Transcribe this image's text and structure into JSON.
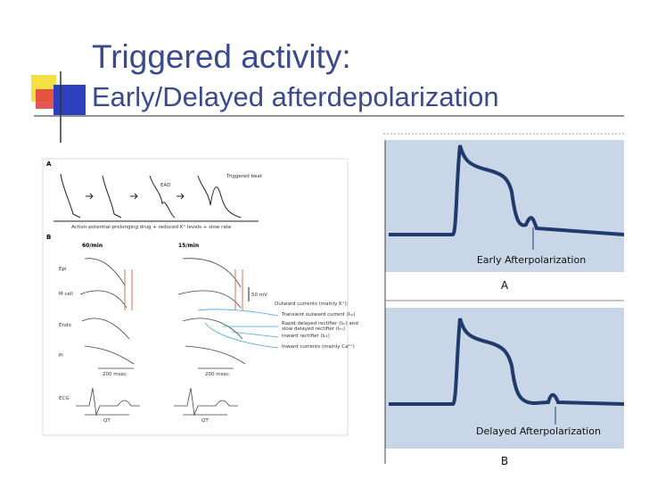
{
  "header": {
    "title": "Triggered activity:",
    "subtitle": "Early/Delayed afterdepolarization"
  },
  "left_figure": {
    "panel_a": {
      "label": "A",
      "ead": "EAD",
      "triggered": "Triggered beat",
      "caption": "Action-potential-prolonging drug + reduced K⁺ levels + slow rate"
    },
    "panel_b": {
      "label": "B",
      "rate_1": "60/min",
      "rate_2": "15/min",
      "rows": [
        "Epi",
        "M cell",
        "Endo",
        "Pi",
        "ECG"
      ],
      "scale_mv": "50 mV",
      "scale_ms": [
        "200 msec",
        "200 msec"
      ],
      "qt": [
        "QT",
        "QT"
      ],
      "currents": [
        "Outward currents (mainly K⁺):",
        "Transient outward current (Iₜₒ)",
        "Rapid delayed rectifier (Iₖᵣ) and",
        "slow delayed rectifier (Iₖₛ)",
        "Inward rectifier (Iₖ₁)",
        "Inward currents (mainly Ca²⁺)"
      ]
    }
  },
  "right_figure": {
    "panel_a": {
      "caption": "Early Afterpolarization",
      "label": "A"
    },
    "panel_b": {
      "caption": "Delayed Afterpolarization",
      "label": "B"
    }
  }
}
